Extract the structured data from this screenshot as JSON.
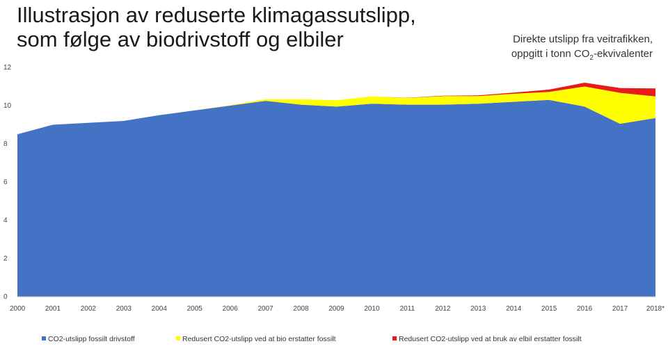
{
  "title_lines": [
    "Illustrasjon av reduserte klimagassutslipp,",
    "som følge av biodrivstoff og elbiler"
  ],
  "subtitle": {
    "line1": "Direkte utslipp fra veitrafikken,",
    "line2_pre": "oppgitt i tonn CO",
    "line2_sub": "2",
    "line2_post": "-ekvivalenter"
  },
  "chart_data": {
    "type": "area",
    "stacked": true,
    "categories": [
      "2000",
      "2001",
      "2002",
      "2003",
      "2004",
      "2005",
      "2006",
      "2007",
      "2008",
      "2009",
      "2010",
      "2011",
      "2012",
      "2013",
      "2014",
      "2015",
      "2016",
      "2017",
      "2018*"
    ],
    "ylim": [
      0,
      12
    ],
    "yticks": [
      0,
      2,
      4,
      6,
      8,
      10,
      12
    ],
    "grid": false,
    "legend_position": "bottom",
    "series": [
      {
        "name": "CO2-utslipp fossilt drivstoff",
        "color": "#4472C4",
        "values": [
          8.5,
          9.0,
          9.1,
          9.2,
          9.5,
          9.75,
          10.0,
          10.25,
          10.05,
          9.95,
          10.1,
          10.05,
          10.05,
          10.1,
          10.2,
          10.3,
          9.95,
          9.05,
          9.35
        ]
      },
      {
        "name": "Redusert CO2-utslipp ved at bio erstatter fossilt",
        "color": "#FFFF00",
        "values": [
          0,
          0,
          0,
          0,
          0,
          0,
          0.02,
          0.08,
          0.28,
          0.33,
          0.38,
          0.35,
          0.45,
          0.4,
          0.42,
          0.42,
          1.05,
          1.62,
          1.13
        ]
      },
      {
        "name": "Redusert CO2-utslipp ved at bruk av elbil erstatter fossilt",
        "color": "#E81A1A",
        "values": [
          0,
          0,
          0,
          0,
          0,
          0,
          0,
          0,
          0,
          0,
          0,
          0.01,
          0.02,
          0.04,
          0.06,
          0.12,
          0.2,
          0.25,
          0.42
        ]
      }
    ]
  }
}
